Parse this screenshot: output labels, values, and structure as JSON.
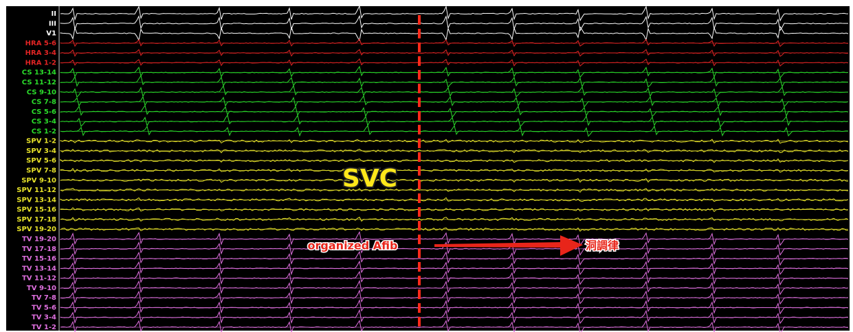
{
  "groups": [
    {
      "color": "#ffffff",
      "labels": [
        "II",
        "III",
        "V1"
      ]
    },
    {
      "color": "#e02424",
      "labels": [
        "HRA 5-6",
        "HRA 3-4",
        "HRA 1-2"
      ]
    },
    {
      "color": "#2bdc2b",
      "labels": [
        "CS 13-14",
        "CS 11-12",
        "CS 9-10",
        "CS 7-8",
        "CS 5-6",
        "CS 3-4",
        "CS 1-2"
      ]
    },
    {
      "color": "#e6e22a",
      "labels": [
        "SPV 1-2",
        "SPV 3-4",
        "SPV 5-6",
        "SPV 7-8",
        "SPV 9-10",
        "SPV 11-12",
        "SPV 13-14",
        "SPV 15-16",
        "SPV 17-18",
        "SPV 19-20"
      ]
    },
    {
      "color": "#e070e0",
      "labels": [
        "TV 19-20",
        "TV 17-18",
        "TV 15-16",
        "TV 13-14",
        "TV 11-12",
        "TV 9-10",
        "TV 7-8",
        "TV 5-6",
        "TV 3-4",
        "TV 1-2"
      ]
    }
  ],
  "annotations": {
    "site": "SVC",
    "before": "organized Afib",
    "after": "洞調律"
  }
}
